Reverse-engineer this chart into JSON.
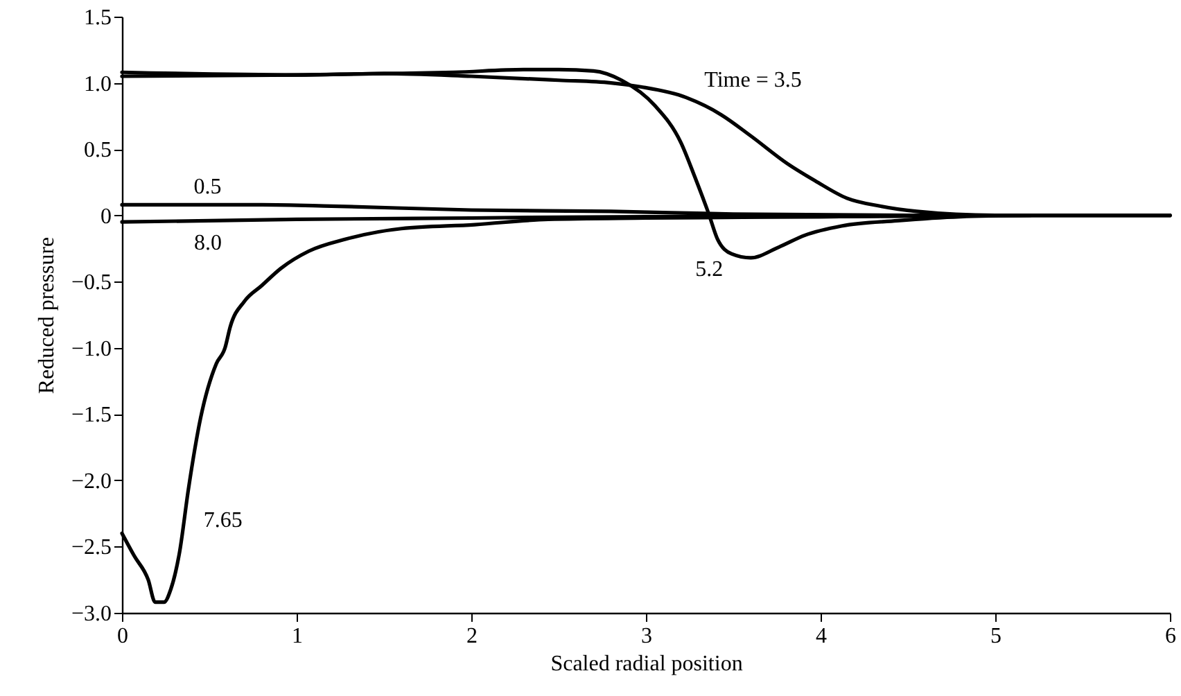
{
  "chart_data": {
    "type": "line",
    "xlabel": "Scaled radial position",
    "ylabel": "Reduced pressure",
    "xlim": [
      0,
      6
    ],
    "xticks": [
      0,
      1,
      2,
      3,
      4,
      5,
      6
    ],
    "ylim": [
      -3,
      1.5
    ],
    "yticks": [
      {
        "value": -3,
        "label": "−3.0"
      },
      {
        "value": -2.5,
        "label": "−2.5"
      },
      {
        "value": -2,
        "label": "−2.0"
      },
      {
        "value": -1.5,
        "label": "−1.5"
      },
      {
        "value": -1,
        "label": "−1.0"
      },
      {
        "value": -0.5,
        "label": "−0.5"
      },
      0,
      0.5,
      {
        "value": 1,
        "label": "1.0"
      },
      1.5
    ],
    "grid": false,
    "marker": "none",
    "line_style": "solid",
    "series": [
      {
        "name": "0.5",
        "color": "#000000",
        "x": [
          0,
          0.8,
          1.2,
          2,
          2.8,
          3.5,
          4.5,
          6
        ],
        "values": [
          0.08,
          0.08,
          0.07,
          0.04,
          0.03,
          0.01,
          0,
          0
        ]
      },
      {
        "name": "Time = 3.5",
        "color": "#000000",
        "x": [
          0,
          1,
          1.5,
          2,
          2.5,
          2.8,
          2.97,
          3.23,
          3.43,
          3.6,
          3.81,
          3.97,
          4.15,
          4.34,
          4.55,
          5,
          6
        ],
        "values": [
          1.08,
          1.06,
          1.07,
          1.05,
          1.02,
          1.0,
          0.97,
          0.89,
          0.76,
          0.6,
          0.39,
          0.26,
          0.13,
          0.07,
          0.03,
          0,
          0
        ]
      },
      {
        "name": "5.2",
        "color": "#000000",
        "x": [
          0,
          1,
          1.5,
          1.9,
          2.3,
          2.5,
          2.7,
          2.86,
          3.05,
          3.2,
          3.28,
          3.36,
          3.41,
          3.49,
          3.6,
          3.76,
          3.91,
          4.12,
          4.44,
          4.8,
          5.2
        ],
        "values": [
          1.05,
          1.06,
          1.07,
          1.08,
          1.1,
          1.1,
          1.09,
          1.02,
          0.83,
          0.55,
          0.29,
          0.01,
          -0.18,
          -0.29,
          -0.32,
          -0.24,
          -0.15,
          -0.08,
          -0.04,
          -0.01,
          0
        ]
      },
      {
        "name": "7.65",
        "color": "#000000",
        "x": [
          0,
          0.07,
          0.15,
          0.19,
          0.24,
          0.28,
          0.33,
          0.38,
          0.45,
          0.54,
          0.59,
          0.62,
          0.7,
          0.8,
          0.91,
          1.07,
          1.28,
          1.6,
          2.02,
          2.44,
          3,
          4,
          5,
          6
        ],
        "values": [
          -2.4,
          -2.57,
          -2.75,
          -2.92,
          -2.92,
          -2.82,
          -2.54,
          -2.07,
          -1.53,
          -1.12,
          -1.0,
          -0.84,
          -0.65,
          -0.53,
          -0.4,
          -0.27,
          -0.18,
          -0.1,
          -0.07,
          -0.03,
          -0.02,
          -0.01,
          0,
          0
        ]
      },
      {
        "name": "8.0",
        "color": "#000000",
        "x": [
          0,
          1,
          2,
          3,
          4,
          5,
          6
        ],
        "values": [
          -0.05,
          -0.03,
          -0.02,
          -0.01,
          -0.01,
          0,
          0
        ]
      }
    ]
  }
}
